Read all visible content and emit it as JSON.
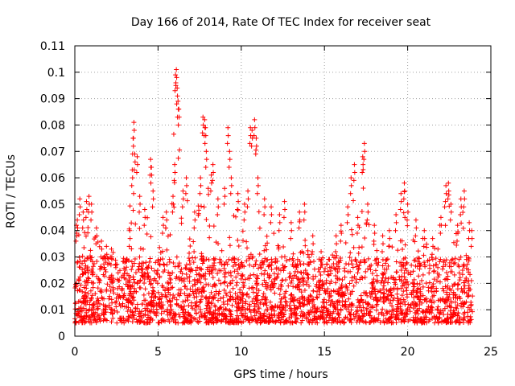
{
  "chart_data": {
    "type": "scatter",
    "title": "Day 166 of 2014, Rate Of TEC Index for receiver seat",
    "xlabel": "GPS time / hours",
    "ylabel": "ROTI / TECUs",
    "xlim": [
      0,
      25
    ],
    "ylim": [
      0,
      0.11
    ],
    "x_ticks": [
      0,
      5,
      10,
      15,
      20,
      25
    ],
    "y_ticks": [
      0,
      0.01,
      0.02,
      0.03,
      0.04,
      0.05,
      0.06,
      0.07,
      0.08,
      0.09,
      0.1,
      0.11
    ],
    "x_tick_labels": [
      "0",
      "5",
      "10",
      "15",
      "20",
      "25"
    ],
    "y_tick_labels": [
      "0",
      "0.01",
      "0.02",
      "0.03",
      "0.04",
      "0.05",
      "0.06",
      "0.07",
      "0.08",
      "0.09",
      "0.1",
      "0.11"
    ],
    "grid": true,
    "marker": "+",
    "marker_color": "#ff0000",
    "x_data_range": [
      0,
      23.9
    ],
    "typical_band": [
      0.005,
      0.03
    ],
    "series": [
      {
        "name": "ROTI",
        "points": [
          [
            0.1,
            0.042
          ],
          [
            0.15,
            0.044
          ],
          [
            0.3,
            0.052
          ],
          [
            0.5,
            0.047
          ],
          [
            0.7,
            0.051
          ],
          [
            0.85,
            0.053
          ],
          [
            1.0,
            0.05
          ],
          [
            1.3,
            0.041
          ],
          [
            1.6,
            0.036
          ],
          [
            1.9,
            0.034
          ],
          [
            2.2,
            0.033
          ],
          [
            2.6,
            0.024
          ],
          [
            3.0,
            0.028
          ],
          [
            3.3,
            0.04
          ],
          [
            3.45,
            0.063
          ],
          [
            3.5,
            0.075
          ],
          [
            3.55,
            0.081
          ],
          [
            3.6,
            0.069
          ],
          [
            3.75,
            0.068
          ],
          [
            3.9,
            0.053
          ],
          [
            4.2,
            0.048
          ],
          [
            4.55,
            0.067
          ],
          [
            4.6,
            0.064
          ],
          [
            4.7,
            0.055
          ],
          [
            5.3,
            0.045
          ],
          [
            5.5,
            0.047
          ],
          [
            5.9,
            0.053
          ],
          [
            6.0,
            0.065
          ],
          [
            6.05,
            0.099
          ],
          [
            6.1,
            0.101
          ],
          [
            6.15,
            0.094
          ],
          [
            6.2,
            0.089
          ],
          [
            6.25,
            0.086
          ],
          [
            6.5,
            0.055
          ],
          [
            6.7,
            0.06
          ],
          [
            7.2,
            0.047
          ],
          [
            7.55,
            0.06
          ],
          [
            7.7,
            0.083
          ],
          [
            7.8,
            0.082
          ],
          [
            7.85,
            0.079
          ],
          [
            7.9,
            0.07
          ],
          [
            8.2,
            0.061
          ],
          [
            8.3,
            0.065
          ],
          [
            8.6,
            0.052
          ],
          [
            9.0,
            0.056
          ],
          [
            9.2,
            0.079
          ],
          [
            9.3,
            0.07
          ],
          [
            9.4,
            0.06
          ],
          [
            9.8,
            0.054
          ],
          [
            10.2,
            0.05
          ],
          [
            10.4,
            0.055
          ],
          [
            10.55,
            0.079
          ],
          [
            10.65,
            0.078
          ],
          [
            10.8,
            0.082
          ],
          [
            10.9,
            0.075
          ],
          [
            11.0,
            0.06
          ],
          [
            11.4,
            0.052
          ],
          [
            11.8,
            0.049
          ],
          [
            12.3,
            0.046
          ],
          [
            12.6,
            0.051
          ],
          [
            13.0,
            0.043
          ],
          [
            13.5,
            0.047
          ],
          [
            13.8,
            0.05
          ],
          [
            14.3,
            0.038
          ],
          [
            14.8,
            0.032
          ],
          [
            15.3,
            0.029
          ],
          [
            15.7,
            0.038
          ],
          [
            16.0,
            0.042
          ],
          [
            16.4,
            0.049
          ],
          [
            16.6,
            0.06
          ],
          [
            16.8,
            0.065
          ],
          [
            17.0,
            0.045
          ],
          [
            17.3,
            0.068
          ],
          [
            17.4,
            0.073
          ],
          [
            17.6,
            0.05
          ],
          [
            18.0,
            0.042
          ],
          [
            18.5,
            0.038
          ],
          [
            18.9,
            0.04
          ],
          [
            19.3,
            0.046
          ],
          [
            19.6,
            0.054
          ],
          [
            19.8,
            0.058
          ],
          [
            20.0,
            0.05
          ],
          [
            20.5,
            0.044
          ],
          [
            21.0,
            0.04
          ],
          [
            21.5,
            0.037
          ],
          [
            22.0,
            0.045
          ],
          [
            22.3,
            0.057
          ],
          [
            22.45,
            0.058
          ],
          [
            22.6,
            0.05
          ],
          [
            23.0,
            0.042
          ],
          [
            23.2,
            0.052
          ],
          [
            23.4,
            0.055
          ],
          [
            23.7,
            0.043
          ],
          [
            23.85,
            0.04
          ]
        ]
      }
    ]
  }
}
